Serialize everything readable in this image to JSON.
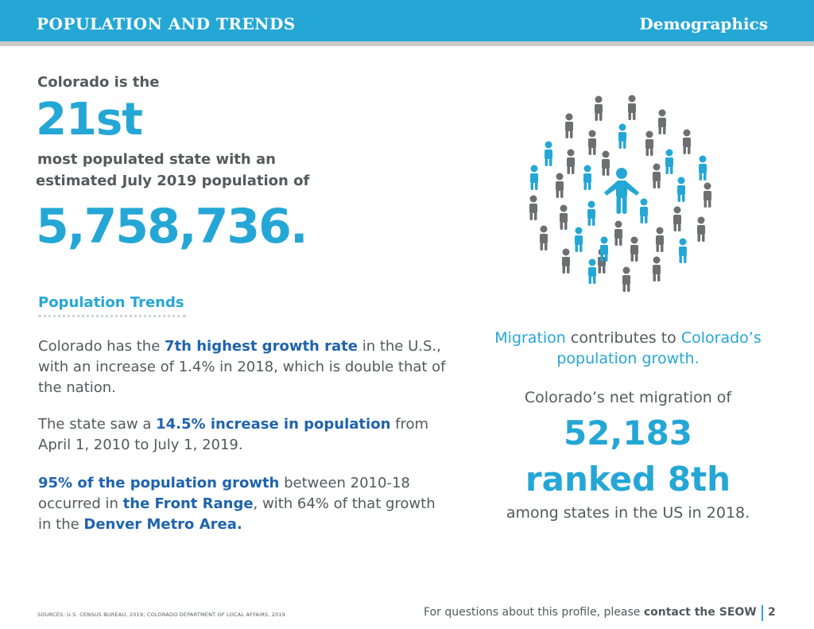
{
  "header": {
    "title": "POPULATION AND TRENDS",
    "section": "Demographics"
  },
  "intro": {
    "line1": "Colorado is the",
    "rank": "21st",
    "line2": "most populated state with an",
    "line3": "estimated July 2019 population of",
    "population": "5,758,736."
  },
  "trends": {
    "title": "Population Trends",
    "p1": {
      "t1": "Colorado has the ",
      "h1": "7th highest growth rate",
      "t2": " in the U.S., with an increase of 1.4% in 2018, which is double that of the nation."
    },
    "p2": {
      "t1": "The state saw a ",
      "h1": "14.5% increase in population",
      "t2": " from April 1, 2010 to July 1, 2019."
    },
    "p3": {
      "h1": "95% of the population growth",
      "t1": " between 2010-18 occurred in ",
      "h2": "the Front Range",
      "t2": ", with 64% of that growth in the ",
      "h3": "Denver Metro Area."
    }
  },
  "people_icon": "crowd-of-people-icon",
  "migration": {
    "w1": "Migration",
    "w2": " contributes to ",
    "w3": "Colorado’s",
    "w4": "population growth.",
    "net_label": "Colorado’s net migration of",
    "net_value": "52,183",
    "rank": "ranked 8th",
    "among": "among states in the US in 2018."
  },
  "footer": {
    "sources": "SOURCES: U.S. CENSUS BUREAU, 2019; COLORADO DEPARTMENT OF LOCAL AFFAIRS, 2019",
    "question": "For questions about this profile, please ",
    "contact": "contact the SEOW",
    "page": "2"
  },
  "colors": {
    "brand_blue": "#25a7d6",
    "dark_blue": "#1f63ad",
    "grey_person": "#6d6f73",
    "text": "#55595d"
  }
}
